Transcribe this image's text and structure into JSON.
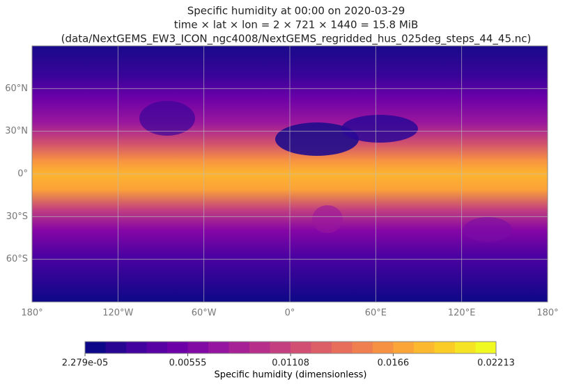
{
  "chart_data": {
    "type": "map",
    "title": "Specific humidity at 00:00 on 2020-03-29",
    "subtitle": "time × lat × lon = 2 × 721 × 1440 = 15.8 MiB",
    "source": "(data/NextGEMS_EW3_ICON_ngc4008/NextGEMS_regridded_hus_025deg_steps_44_45.nc)",
    "xlim": [
      -180,
      180
    ],
    "ylim": [
      -90,
      90
    ],
    "xticks": [
      {
        "value": -180,
        "label": "180°"
      },
      {
        "value": -120,
        "label": "120°W"
      },
      {
        "value": -60,
        "label": "60°W"
      },
      {
        "value": 0,
        "label": "0°"
      },
      {
        "value": 60,
        "label": "60°E"
      },
      {
        "value": 120,
        "label": "120°E"
      },
      {
        "value": 180,
        "label": "180°"
      }
    ],
    "yticks": [
      {
        "value": 60,
        "label": "60°N"
      },
      {
        "value": 30,
        "label": "30°N"
      },
      {
        "value": 0,
        "label": "0°"
      },
      {
        "value": -30,
        "label": "30°S"
      },
      {
        "value": -60,
        "label": "60°S"
      }
    ],
    "grid": true,
    "colormap": "plasma",
    "colorbar": {
      "label": "Specific humidity (dimensionless)",
      "lim": [
        2.279e-05,
        0.02213
      ],
      "ticks": [
        {
          "value": 2.279e-05,
          "label": "2.279e-05"
        },
        0.00555,
        0.01108,
        0.0166,
        0.02213
      ]
    }
  }
}
